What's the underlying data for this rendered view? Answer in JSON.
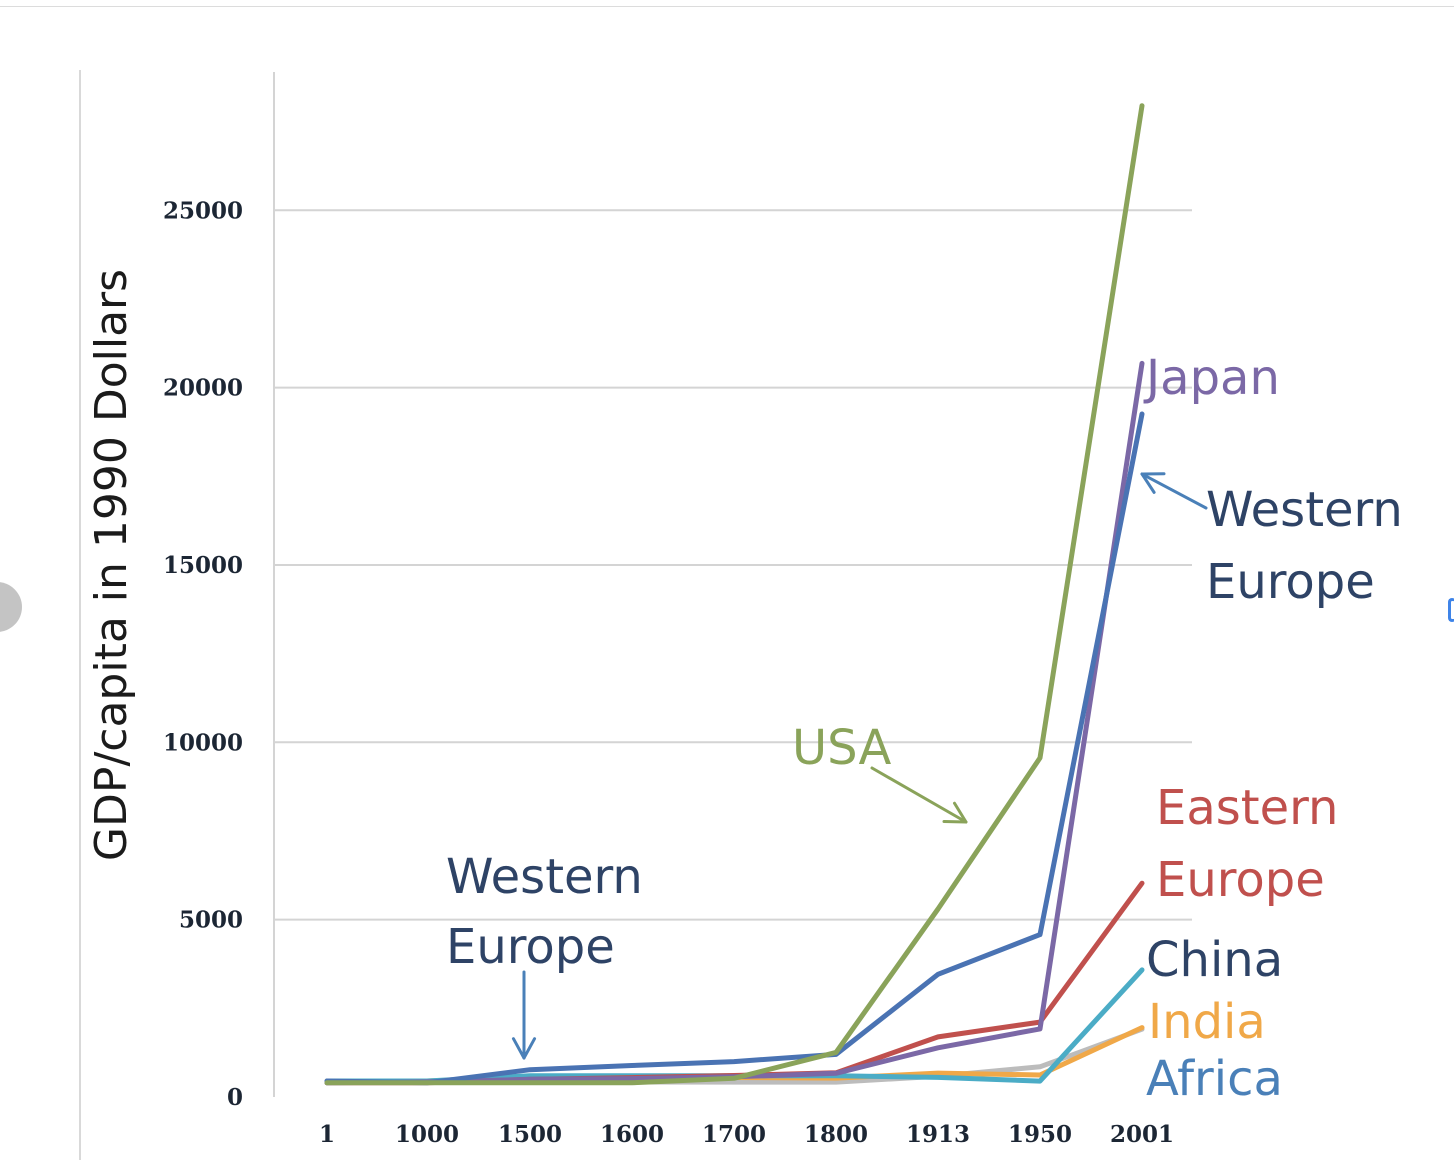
{
  "chart_data": {
    "type": "line",
    "title": "",
    "xlabel": "",
    "ylabel": "GDP/capita in 1990 Dollars",
    "categories": [
      "1",
      "1000",
      "1500",
      "1600",
      "1700",
      "1800",
      "1913",
      "1950",
      "2001"
    ],
    "ylim": [
      0,
      28000
    ],
    "yticks": [
      "0",
      "5000",
      "10000",
      "15000",
      "20000",
      "25000"
    ],
    "grid": "horizontal",
    "series": [
      {
        "name": "USA",
        "color": "#8aa35a",
        "values": [
          400,
          400,
          400,
          400,
          527,
          1257,
          5301,
          9561,
          27948
        ]
      },
      {
        "name": "Western Europe",
        "color": "#4a73b3",
        "values": [
          450,
          400,
          771,
          889,
          997,
          1202,
          3458,
          4579,
          19256
        ]
      },
      {
        "name": "Japan",
        "color": "#7b68a6",
        "values": [
          400,
          425,
          500,
          520,
          570,
          669,
          1387,
          1921,
          20683
        ]
      },
      {
        "name": "Eastern Europe",
        "color": "#c0504d",
        "values": [
          400,
          400,
          496,
          548,
          606,
          683,
          1695,
          2111,
          6027
        ]
      },
      {
        "name": "China",
        "color": "#4bacc6",
        "values": [
          450,
          450,
          600,
          600,
          600,
          600,
          552,
          448,
          3583
        ]
      },
      {
        "name": "India",
        "color": "#f0a848",
        "values": [
          450,
          450,
          550,
          550,
          550,
          533,
          673,
          619,
          1957
        ]
      },
      {
        "name": "Africa",
        "color": "#bcbcbc",
        "values": [
          430,
          425,
          414,
          422,
          421,
          420,
          585,
          852,
          1912
        ]
      }
    ],
    "annotations": [
      {
        "id": "japan",
        "lines": [
          "Japan"
        ],
        "color": "#7b68a6"
      },
      {
        "id": "western-europe-right",
        "lines": [
          "Western",
          "Europe"
        ],
        "color": "#2e4366"
      },
      {
        "id": "usa",
        "lines": [
          "USA"
        ],
        "color": "#8aa35a"
      },
      {
        "id": "eastern-europe",
        "lines": [
          "Eastern",
          "Europe"
        ],
        "color": "#c0504d"
      },
      {
        "id": "china",
        "lines": [
          "China"
        ],
        "color": "#2e4366"
      },
      {
        "id": "india",
        "lines": [
          "India"
        ],
        "color": "#f0a848"
      },
      {
        "id": "africa",
        "lines": [
          "Africa"
        ],
        "color": "#4a80b8"
      },
      {
        "id": "western-europe-left",
        "lines": [
          "Western",
          "Europe"
        ],
        "color": "#2e4366"
      }
    ]
  }
}
